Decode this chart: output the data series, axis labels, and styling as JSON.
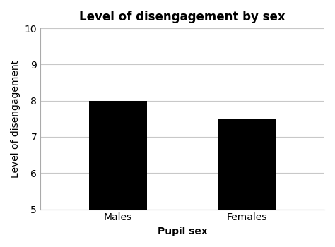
{
  "title": "Level of disengagement by sex",
  "categories": [
    "Males",
    "Females"
  ],
  "values": [
    8.0,
    7.5
  ],
  "bar_color": "#000000",
  "bar_width": 0.45,
  "xlabel": "Pupil sex",
  "ylabel": "Level of disengagement",
  "ylim": [
    5,
    10
  ],
  "ymin": 5,
  "yticks": [
    5,
    6,
    7,
    8,
    9,
    10
  ],
  "title_fontsize": 12,
  "label_fontsize": 10,
  "tick_fontsize": 10,
  "background_color": "#ffffff",
  "grid_color": "#c8c8c8"
}
